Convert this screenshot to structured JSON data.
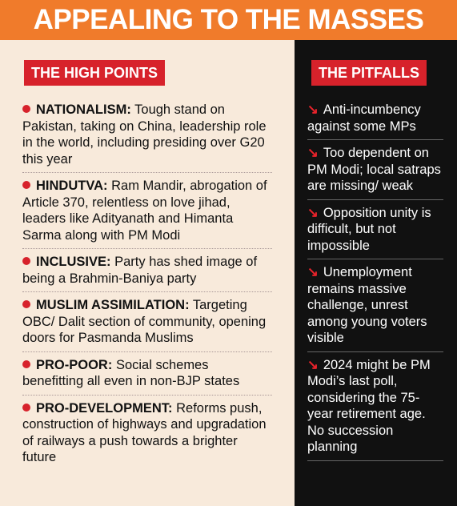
{
  "header": {
    "title": "APPEALING TO THE MASSES"
  },
  "high_points": {
    "label": "THE HIGH POINTS",
    "items": [
      {
        "keyword": "NATIONALISM:",
        "text": "Tough stand on Pakistan, taking on China, leadership role in the world, including presiding over G20 this year"
      },
      {
        "keyword": "HINDUTVA:",
        "text": "Ram Mandir, abrogation of Article 370, relentless on love jihad, leaders like Adityanath and Himanta Sarma along with PM Modi"
      },
      {
        "keyword": "INCLUSIVE:",
        "text": "Party has shed image of being a Brahmin-Baniya party"
      },
      {
        "keyword": "MUSLIM ASSIMILATION:",
        "text": "Targeting OBC/ Dalit section of community, opening doors for Pasmanda Muslims"
      },
      {
        "keyword": "PRO-POOR:",
        "text": "Social schemes benefitting all even in non-BJP states"
      },
      {
        "keyword": "PRO-DEVELOPMENT:",
        "text": "Reforms push, construction of highways and upgradation of railways a push towards a brighter future"
      }
    ]
  },
  "pitfalls": {
    "label": "THE PITFALLS",
    "items": [
      "Anti-incumbency against some MPs",
      "Too dependent on PM Modi; local satraps are missing/ weak",
      "Opposition unity is difficult, but not impossible",
      "Unemployment remains massive challenge, unrest among young voters visible",
      "2024 might be PM Modi’s last poll, considering the 75-year retirement age. No succession planning"
    ]
  }
}
